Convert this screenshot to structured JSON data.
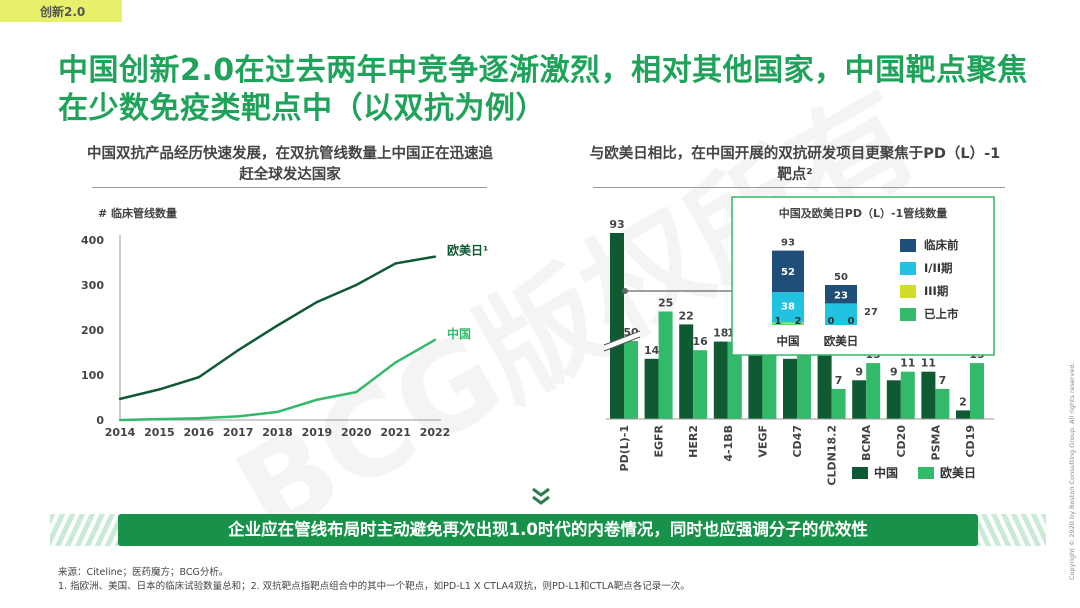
{
  "tag": "创新2.0",
  "title": "中国创新2.0在过去两年中竞争逐渐激烈，相对其他国家，中国靶点聚焦在少数免疫类靶点中（以双抗为例）",
  "left_subtitle": "中国双抗产品经历快速发展，在双抗管线数量上中国正在迅速追赶全球发达国家",
  "right_subtitle": "与欧美日相比，在中国开展的双抗研发项目更聚焦于PD（L）-1靶点²",
  "watermark": "BCG版权所有",
  "banner": "企业应在管线布局时主动避免再次出现1.0时代的内卷情况，同时也应强调分子的优效性",
  "notes": [
    "来源：Citeline；医药魔方；BCG分析。",
    "1. 指欧洲、美国、日本的临床试验数量总和；2. 双抗靶点指靶点组合中的其中一个靶点，如PD-L1 X CTLA4双抗，则PD-L1和CTLA靶点各记录一次。"
  ],
  "copyright": "Copyright © 2020 by Boston Consulting Group. All rights reserved.",
  "colors": {
    "green_dark": "#0f5a32",
    "green_light": "#33b96a",
    "navy": "#1f4e79",
    "cyan": "#22c3e0",
    "yellow": "#d2dc28",
    "title_green": "#1fa35a"
  },
  "chart_data": [
    {
      "type": "line",
      "title": "",
      "ylabel": "# 临床管线数量",
      "xlabel": "",
      "x": [
        "2014",
        "2015",
        "2016",
        "2017",
        "2018",
        "2019",
        "2020",
        "2021",
        "2022"
      ],
      "ylim": [
        0,
        400
      ],
      "yticks": [
        0,
        100,
        200,
        300,
        400
      ],
      "grid": false,
      "series": [
        {
          "name": "欧美日¹",
          "color": "#0f5a32",
          "values": [
            47,
            68,
            95,
            155,
            210,
            262,
            300,
            348,
            363
          ]
        },
        {
          "name": "中国",
          "color": "#33b96a",
          "values": [
            0,
            2,
            4,
            8,
            18,
            45,
            62,
            128,
            178
          ]
        }
      ]
    },
    {
      "type": "bar",
      "title": "",
      "categories": [
        "PD(L)-1",
        "EGFR",
        "HER2",
        "4-1BB",
        "VEGF",
        "CD47",
        "CLDN18.2",
        "BCMA",
        "CD20",
        "PSMA",
        "CD19"
      ],
      "series": [
        {
          "name": "中国",
          "color": "#0f5a32",
          "values": [
            93,
            14,
            22,
            18,
            15,
            14,
            19,
            9,
            9,
            11,
            2
          ]
        },
        {
          "name": "欧美日",
          "color": "#33b96a",
          "values": [
            50,
            25,
            16,
            18,
            15,
            15,
            7,
            13,
            11,
            7,
            13
          ]
        }
      ],
      "axis_break": true,
      "legend": "bottom-right"
    },
    {
      "type": "bar",
      "stacked": true,
      "title": "中国及欧美日PD（L）-1管线数量",
      "categories": [
        "中国",
        "欧美日"
      ],
      "totals": [
        93,
        50
      ],
      "series": [
        {
          "name": "临床前",
          "color": "#1f4e79",
          "values": [
            52,
            23
          ]
        },
        {
          "name": "I/II期",
          "color": "#22c3e0",
          "values": [
            38,
            27
          ]
        },
        {
          "name": "III期",
          "color": "#d2dc28",
          "values": [
            2,
            0
          ]
        },
        {
          "name": "已上市",
          "color": "#33b96a",
          "values": [
            1,
            0
          ]
        }
      ],
      "legend": "right"
    }
  ]
}
